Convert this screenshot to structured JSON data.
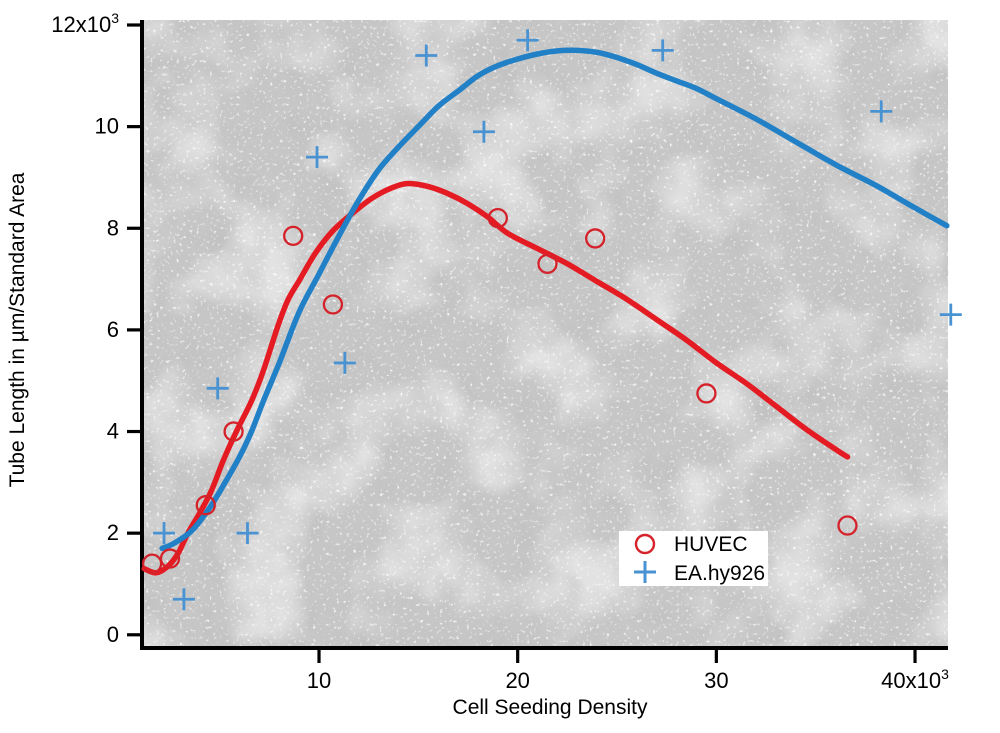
{
  "page": {
    "background": "#ffffff"
  },
  "chart_data": {
    "type": "scatter",
    "title": "",
    "xlabel": "Cell Seeding Density",
    "ylabel": "Tube Length in µm/Standard Area",
    "xlim": [
      1090,
      41660
    ],
    "ylim": [
      -260,
      12000
    ],
    "grid": false,
    "background": "phase-contrast microscopy image of endothelial tube network",
    "background_base_color": "#c6c6c6",
    "axis_color": "#000000",
    "x_ticks": [
      {
        "value": 10000,
        "label": "10"
      },
      {
        "value": 20000,
        "label": "20"
      },
      {
        "value": 30000,
        "label": "30"
      },
      {
        "value": 40000,
        "label": "40x10",
        "sup": "3"
      }
    ],
    "y_ticks": [
      {
        "value": 0,
        "label": "0"
      },
      {
        "value": 2000,
        "label": "2"
      },
      {
        "value": 4000,
        "label": "4"
      },
      {
        "value": 6000,
        "label": "6"
      },
      {
        "value": 8000,
        "label": "8"
      },
      {
        "value": 10000,
        "label": "10"
      },
      {
        "value": 12000,
        "label": "12x10",
        "sup": "3"
      }
    ],
    "legend": {
      "position": "inside-bottom-right",
      "box_color": "#ffffff"
    },
    "series": [
      {
        "name": "HUVEC",
        "marker": "circle",
        "marker_color": "#d52129",
        "curve_color": "#e41b22",
        "points": [
          [
            1600,
            1400
          ],
          [
            2500,
            1500
          ],
          [
            4300,
            2550
          ],
          [
            5700,
            4000
          ],
          [
            8700,
            7850
          ],
          [
            10700,
            6500
          ],
          [
            19000,
            8200
          ],
          [
            21500,
            7300
          ],
          [
            23900,
            7800
          ],
          [
            29500,
            4750
          ],
          [
            36600,
            2150
          ]
        ],
        "fit_curve": [
          [
            1200,
            1300
          ],
          [
            1800,
            1220
          ],
          [
            2400,
            1350
          ],
          [
            2900,
            1600
          ],
          [
            3400,
            2000
          ],
          [
            4000,
            2400
          ],
          [
            4600,
            2850
          ],
          [
            5200,
            3450
          ],
          [
            5900,
            4050
          ],
          [
            6600,
            4600
          ],
          [
            7200,
            5200
          ],
          [
            7950,
            6100
          ],
          [
            8450,
            6600
          ],
          [
            9050,
            7000
          ],
          [
            9800,
            7500
          ],
          [
            10700,
            7950
          ],
          [
            11700,
            8300
          ],
          [
            12700,
            8600
          ],
          [
            13700,
            8800
          ],
          [
            14500,
            8880
          ],
          [
            15500,
            8820
          ],
          [
            16500,
            8680
          ],
          [
            17500,
            8480
          ],
          [
            18500,
            8220
          ],
          [
            19500,
            7900
          ],
          [
            21000,
            7600
          ],
          [
            22500,
            7300
          ],
          [
            24000,
            6950
          ],
          [
            25500,
            6600
          ],
          [
            27000,
            6200
          ],
          [
            28500,
            5800
          ],
          [
            30000,
            5350
          ],
          [
            31500,
            4950
          ],
          [
            33000,
            4500
          ],
          [
            34500,
            4050
          ],
          [
            36000,
            3650
          ],
          [
            36600,
            3500
          ]
        ]
      },
      {
        "name": "EA.hy926",
        "marker": "plus",
        "marker_color": "#4a93d2",
        "curve_color": "#2180c6",
        "points": [
          [
            2200,
            2000
          ],
          [
            3200,
            700
          ],
          [
            4900,
            4850
          ],
          [
            6400,
            2000
          ],
          [
            9900,
            9400
          ],
          [
            11300,
            5350
          ],
          [
            15400,
            11400
          ],
          [
            18300,
            9900
          ],
          [
            20500,
            11700
          ],
          [
            27300,
            11500
          ],
          [
            38300,
            10300
          ],
          [
            41800,
            6300
          ]
        ],
        "fit_curve": [
          [
            2100,
            1700
          ],
          [
            2700,
            1800
          ],
          [
            3600,
            2050
          ],
          [
            4500,
            2500
          ],
          [
            5200,
            2950
          ],
          [
            6000,
            3500
          ],
          [
            6600,
            4000
          ],
          [
            7200,
            4600
          ],
          [
            8000,
            5350
          ],
          [
            9000,
            6350
          ],
          [
            10000,
            7100
          ],
          [
            11000,
            7850
          ],
          [
            12000,
            8550
          ],
          [
            13000,
            9150
          ],
          [
            14000,
            9600
          ],
          [
            15000,
            10000
          ],
          [
            16000,
            10400
          ],
          [
            17000,
            10700
          ],
          [
            18000,
            11000
          ],
          [
            19000,
            11200
          ],
          [
            20000,
            11330
          ],
          [
            21000,
            11430
          ],
          [
            22000,
            11490
          ],
          [
            23000,
            11500
          ],
          [
            24000,
            11460
          ],
          [
            25000,
            11360
          ],
          [
            26000,
            11220
          ],
          [
            27000,
            11050
          ],
          [
            28000,
            10900
          ],
          [
            29000,
            10750
          ],
          [
            30000,
            10550
          ],
          [
            32000,
            10150
          ],
          [
            34000,
            9700
          ],
          [
            36000,
            9250
          ],
          [
            38000,
            8850
          ],
          [
            40000,
            8400
          ],
          [
            41600,
            8050
          ]
        ]
      }
    ]
  }
}
